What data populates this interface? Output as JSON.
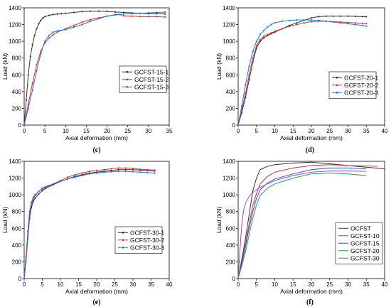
{
  "chart_data": [
    {
      "type": "line",
      "panel_label": "(c)",
      "xlabel": "Axial deformation (mm)",
      "ylabel": "Load (kN)",
      "xlim": [
        0,
        35
      ],
      "ylim": [
        0,
        1400
      ],
      "xticks": [
        0,
        5,
        10,
        15,
        20,
        25,
        30,
        35
      ],
      "yticks": [
        0,
        200,
        400,
        600,
        800,
        1000,
        1200,
        1400
      ],
      "legend_position": "center-right",
      "markers": true,
      "series": [
        {
          "name": "GCFST-15-1",
          "color": "#333333",
          "x": [
            0,
            0.5,
            1,
            1.5,
            2,
            2.5,
            3,
            3.5,
            4,
            4.5,
            5,
            6,
            7,
            8,
            9,
            10,
            12,
            14,
            16,
            18,
            20,
            22,
            24,
            26,
            28,
            30,
            32,
            34
          ],
          "y": [
            0,
            300,
            600,
            820,
            960,
            1070,
            1150,
            1210,
            1250,
            1280,
            1295,
            1310,
            1320,
            1325,
            1330,
            1335,
            1345,
            1355,
            1360,
            1360,
            1358,
            1350,
            1345,
            1340,
            1335,
            1330,
            1330,
            1325
          ]
        },
        {
          "name": "GCFST-15-2",
          "color": "#e03030",
          "x": [
            0,
            1,
            2,
            3,
            4,
            5,
            6,
            7,
            8,
            10,
            12,
            14,
            16,
            18,
            20,
            22,
            23,
            24,
            26,
            28,
            30,
            32,
            34
          ],
          "y": [
            0,
            250,
            500,
            720,
            880,
            980,
            1040,
            1080,
            1110,
            1150,
            1190,
            1230,
            1260,
            1280,
            1300,
            1320,
            1320,
            1305,
            1300,
            1295,
            1295,
            1295,
            1290
          ]
        },
        {
          "name": "GCFST-15-3",
          "color": "#2277dd",
          "x": [
            0,
            1,
            2,
            3,
            4,
            5,
            6,
            7,
            8,
            10,
            12,
            14,
            16,
            18,
            20,
            22,
            24,
            26,
            28,
            30,
            32,
            34
          ],
          "y": [
            0,
            200,
            420,
            650,
            850,
            1000,
            1070,
            1110,
            1125,
            1140,
            1170,
            1200,
            1240,
            1270,
            1300,
            1315,
            1325,
            1330,
            1335,
            1340,
            1345,
            1348
          ]
        }
      ]
    },
    {
      "type": "line",
      "panel_label": "(d)",
      "xlabel": "Axial deformation (mm)",
      "ylabel": "Load (kN)",
      "xlim": [
        0,
        40
      ],
      "ylim": [
        0,
        1400
      ],
      "xticks": [
        0,
        5,
        10,
        15,
        20,
        25,
        30,
        35,
        40
      ],
      "yticks": [
        0,
        200,
        400,
        600,
        800,
        1000,
        1200,
        1400
      ],
      "legend_position": "center-right",
      "markers": true,
      "series": [
        {
          "name": "GCFST-20-1",
          "color": "#333333",
          "x": [
            0,
            1,
            2,
            3,
            4,
            5,
            6,
            7,
            8,
            9,
            10,
            12,
            14,
            16,
            18,
            20,
            22,
            24,
            26,
            28,
            30,
            32,
            34,
            35
          ],
          "y": [
            0,
            150,
            330,
            540,
            750,
            920,
            1000,
            1040,
            1070,
            1090,
            1110,
            1150,
            1190,
            1220,
            1250,
            1280,
            1295,
            1300,
            1300,
            1300,
            1300,
            1298,
            1295,
            1295
          ]
        },
        {
          "name": "GCFST-20-2",
          "color": "#e03030",
          "x": [
            0,
            1,
            2,
            3,
            4,
            5,
            6,
            7,
            8,
            9,
            10,
            12,
            14,
            16,
            18,
            20,
            22,
            24,
            26,
            28,
            30,
            32,
            34,
            35
          ],
          "y": [
            0,
            180,
            380,
            600,
            800,
            950,
            1020,
            1060,
            1080,
            1100,
            1120,
            1150,
            1180,
            1200,
            1220,
            1235,
            1240,
            1240,
            1235,
            1230,
            1225,
            1220,
            1215,
            1210
          ]
        },
        {
          "name": "GCFST-20-3",
          "color": "#2277dd",
          "x": [
            0,
            1,
            2,
            3,
            4,
            5,
            6,
            7,
            8,
            9,
            10,
            12,
            14,
            16,
            18,
            20,
            22,
            24,
            26,
            28,
            30,
            32,
            34,
            35
          ],
          "y": [
            0,
            230,
            480,
            700,
            880,
            1000,
            1080,
            1130,
            1170,
            1200,
            1220,
            1240,
            1250,
            1255,
            1255,
            1255,
            1250,
            1240,
            1230,
            1220,
            1210,
            1200,
            1190,
            1180
          ]
        }
      ]
    },
    {
      "type": "line",
      "panel_label": "(e)",
      "xlabel": "Axial deformation (mm)",
      "ylabel": "Load (kN)",
      "xlim": [
        0,
        40
      ],
      "ylim": [
        0,
        1400
      ],
      "xticks": [
        0,
        5,
        10,
        15,
        20,
        25,
        30,
        35,
        40
      ],
      "yticks": [
        0,
        200,
        400,
        600,
        800,
        1000,
        1200,
        1400
      ],
      "legend_position": "center-right",
      "markers": true,
      "series": [
        {
          "name": "GCFST-30-1",
          "color": "#333333",
          "x": [
            0,
            0.5,
            1,
            1.5,
            2,
            2.5,
            3,
            4,
            5,
            6,
            8,
            10,
            12,
            14,
            16,
            18,
            20,
            22,
            24,
            26,
            28,
            30,
            32,
            34,
            36
          ],
          "y": [
            0,
            200,
            480,
            720,
            850,
            920,
            960,
            1010,
            1050,
            1080,
            1120,
            1160,
            1190,
            1220,
            1240,
            1260,
            1270,
            1280,
            1290,
            1300,
            1300,
            1300,
            1295,
            1290,
            1285
          ]
        },
        {
          "name": "GCFST-30-2",
          "color": "#e03030",
          "x": [
            0,
            0.5,
            1,
            1.5,
            2,
            2.5,
            3,
            4,
            5,
            6,
            8,
            10,
            12,
            14,
            16,
            18,
            20,
            22,
            24,
            26,
            28,
            30,
            32,
            34,
            36
          ],
          "y": [
            0,
            260,
            560,
            800,
            910,
            970,
            1000,
            1040,
            1070,
            1090,
            1130,
            1170,
            1210,
            1240,
            1260,
            1280,
            1290,
            1300,
            1310,
            1320,
            1320,
            1315,
            1305,
            1300,
            1295
          ]
        },
        {
          "name": "GCFST-30-3",
          "color": "#2277dd",
          "x": [
            0,
            0.5,
            1,
            1.5,
            2,
            2.5,
            3,
            4,
            5,
            6,
            8,
            10,
            12,
            14,
            16,
            18,
            20,
            22,
            24,
            26,
            28,
            30,
            32,
            34,
            36
          ],
          "y": [
            0,
            230,
            520,
            760,
            880,
            950,
            990,
            1040,
            1080,
            1100,
            1130,
            1160,
            1190,
            1210,
            1230,
            1250,
            1260,
            1270,
            1275,
            1280,
            1280,
            1275,
            1270,
            1265,
            1260
          ]
        }
      ]
    },
    {
      "type": "line",
      "panel_label": "(f)",
      "xlabel": "Axial deformation (mm)",
      "ylabel": "Load (kN)",
      "xlim": [
        0,
        40
      ],
      "ylim": [
        0,
        1400
      ],
      "xticks": [
        0,
        5,
        10,
        15,
        20,
        25,
        30,
        35,
        40
      ],
      "yticks": [
        0,
        200,
        400,
        600,
        800,
        1000,
        1200,
        1400
      ],
      "legend_position": "bottom-right",
      "markers": false,
      "series": [
        {
          "name": "OCFST",
          "color": "#333333",
          "x": [
            0,
            1,
            2,
            3,
            4,
            5,
            6,
            8,
            10,
            15,
            20,
            25,
            30,
            35,
            40
          ],
          "y": [
            0,
            230,
            480,
            760,
            1050,
            1200,
            1300,
            1340,
            1360,
            1380,
            1390,
            1370,
            1350,
            1330,
            1310
          ]
        },
        {
          "name": "GCFST-10",
          "color": "#e03030",
          "x": [
            0,
            1,
            2,
            3,
            4,
            5,
            6,
            8,
            10,
            15,
            20,
            25,
            30,
            35,
            38
          ],
          "y": [
            0,
            200,
            420,
            650,
            870,
            1020,
            1130,
            1220,
            1270,
            1320,
            1350,
            1360,
            1350,
            1345,
            1340
          ]
        },
        {
          "name": "GCFST-15",
          "color": "#2255dd",
          "x": [
            0,
            1,
            2,
            3,
            4,
            5,
            6,
            8,
            10,
            15,
            20,
            25,
            30,
            35
          ],
          "y": [
            0,
            180,
            380,
            600,
            800,
            960,
            1060,
            1140,
            1190,
            1250,
            1300,
            1320,
            1320,
            1310
          ]
        },
        {
          "name": "GCFST-20",
          "color": "#2a9a4a",
          "x": [
            0,
            1,
            2,
            3,
            4,
            5,
            6,
            8,
            10,
            15,
            20,
            25,
            30,
            35
          ],
          "y": [
            0,
            150,
            320,
            520,
            720,
            880,
            990,
            1080,
            1130,
            1200,
            1250,
            1260,
            1250,
            1230
          ]
        },
        {
          "name": "GCFST-30",
          "color": "#aa44cc",
          "x": [
            0,
            0.5,
            1,
            1.5,
            2,
            3,
            4,
            6,
            8,
            10,
            15,
            20,
            25,
            30,
            35
          ],
          "y": [
            0,
            350,
            650,
            820,
            900,
            980,
            1030,
            1090,
            1130,
            1170,
            1230,
            1270,
            1285,
            1285,
            1280
          ]
        }
      ]
    }
  ]
}
